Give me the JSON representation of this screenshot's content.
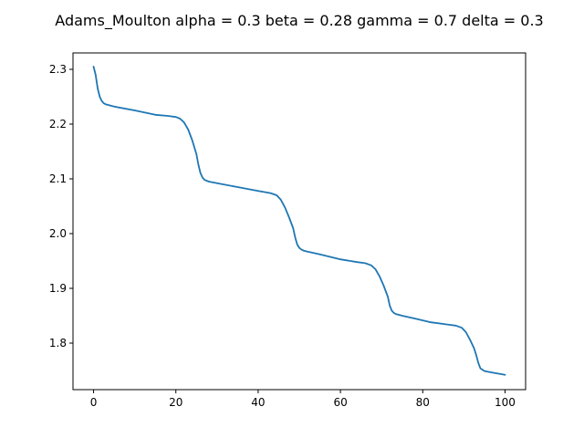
{
  "chart_data": {
    "type": "line",
    "title": "Adams_Moulton alpha = 0.3 beta = 0.28 gamma = 0.7 delta = 0.3",
    "xlabel": "",
    "ylabel": "",
    "xlim": [
      -5,
      105
    ],
    "ylim": [
      1.715,
      2.33
    ],
    "x_ticks": [
      0,
      20,
      40,
      60,
      80,
      100
    ],
    "x_tick_labels": [
      "0",
      "20",
      "40",
      "60",
      "80",
      "100"
    ],
    "y_ticks": [
      1.8,
      1.9,
      2.0,
      2.1,
      2.2,
      2.3
    ],
    "y_tick_labels": [
      "1.8",
      "1.9",
      "2.0",
      "2.1",
      "2.2",
      "2.3"
    ],
    "grid": false,
    "series": [
      {
        "color": "#1f77b4",
        "x": [
          0,
          0.5,
          1,
          1.5,
          2,
          2.5,
          3,
          5,
          10,
          15,
          18,
          20,
          21,
          22,
          23,
          24,
          25,
          25.5,
          26,
          26.5,
          27,
          28,
          30,
          35,
          40,
          43,
          44.5,
          45.5,
          46.5,
          47.5,
          48.5,
          49,
          49.5,
          50,
          50.5,
          51,
          52,
          55,
          60,
          64,
          66,
          67.5,
          68.5,
          69.5,
          70.5,
          71.5,
          72,
          72.5,
          73,
          73.5,
          74,
          75,
          78,
          82,
          86,
          88,
          89.5,
          90.5,
          91.5,
          92.5,
          93,
          93.5,
          94,
          95,
          97,
          100
        ],
        "y": [
          2.305,
          2.29,
          2.265,
          2.25,
          2.242,
          2.238,
          2.236,
          2.232,
          2.225,
          2.217,
          2.215,
          2.213,
          2.21,
          2.203,
          2.19,
          2.17,
          2.145,
          2.125,
          2.11,
          2.102,
          2.098,
          2.095,
          2.092,
          2.085,
          2.078,
          2.074,
          2.07,
          2.062,
          2.048,
          2.03,
          2.01,
          1.993,
          1.98,
          1.974,
          1.971,
          1.969,
          1.967,
          1.962,
          1.953,
          1.948,
          1.946,
          1.942,
          1.935,
          1.922,
          1.905,
          1.885,
          1.868,
          1.859,
          1.855,
          1.853,
          1.852,
          1.85,
          1.845,
          1.838,
          1.834,
          1.832,
          1.828,
          1.82,
          1.806,
          1.79,
          1.778,
          1.764,
          1.754,
          1.749,
          1.746,
          1.742
        ]
      }
    ]
  }
}
